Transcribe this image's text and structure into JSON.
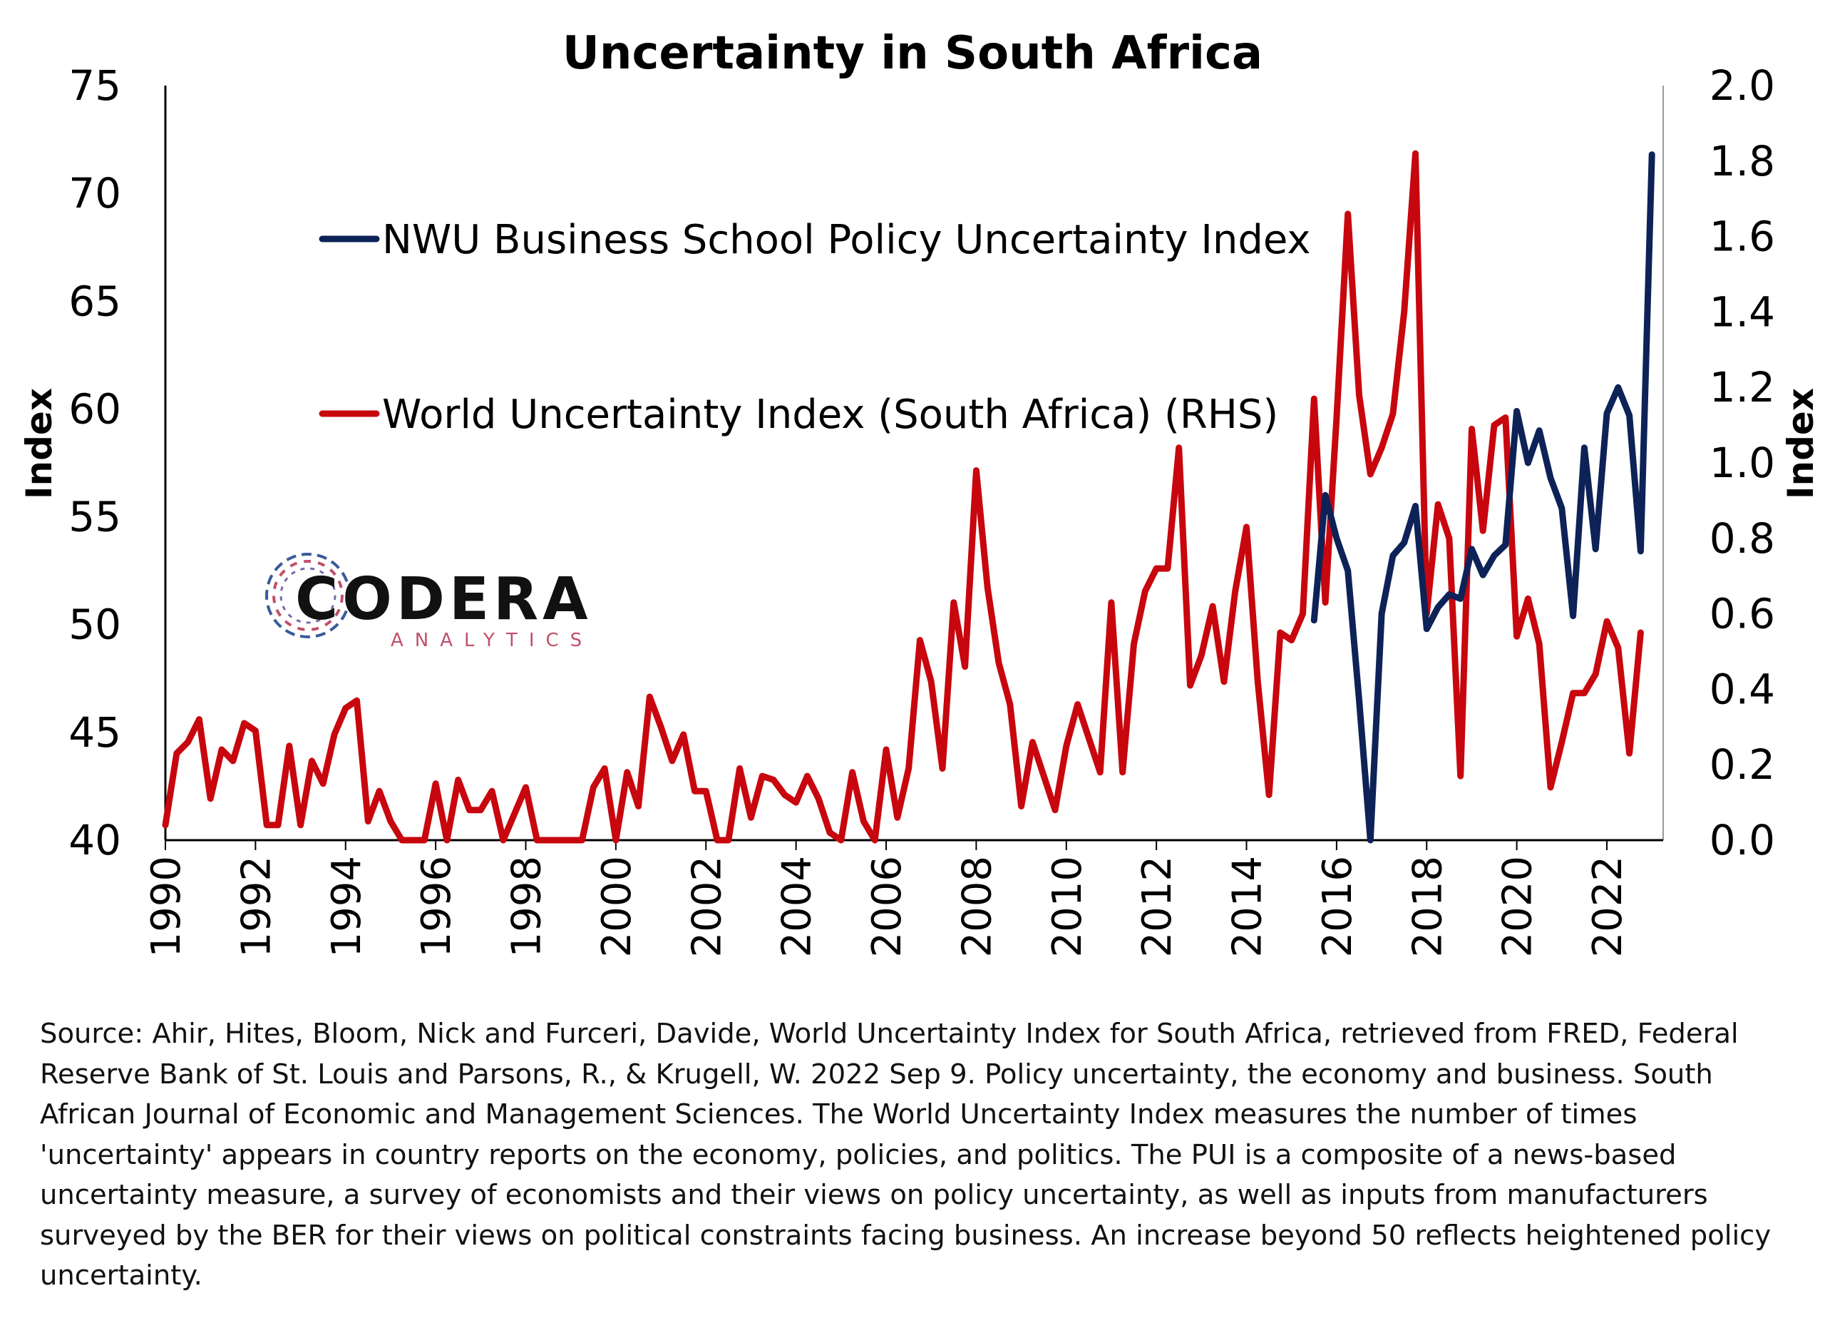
{
  "chart_data": {
    "type": "line",
    "title": "Uncertainty in South Africa",
    "ylabel": "Index",
    "y2label": "Index",
    "ylim": [
      40,
      75
    ],
    "y2lim": [
      0,
      2.0
    ],
    "yticks": [
      "40",
      "45",
      "50",
      "55",
      "60",
      "65",
      "70",
      "75"
    ],
    "y2ticks": [
      "0.0",
      "0.2",
      "0.4",
      "0.6",
      "0.8",
      "1.0",
      "1.2",
      "1.4",
      "1.6",
      "1.8",
      "2.0"
    ],
    "xticks": [
      "1990",
      "1992",
      "1994",
      "1996",
      "1998",
      "2000",
      "2002",
      "2004",
      "2006",
      "2008",
      "2010",
      "2012",
      "2014",
      "2016",
      "2018",
      "2020",
      "2022"
    ],
    "xlim": [
      1990,
      2023.25
    ],
    "legend_position": "upper-left",
    "grid": false,
    "series": [
      {
        "name": "NWU Business School Policy Uncertainty Index",
        "axis": "left",
        "color": "#0d2257",
        "x": [
          2015.5,
          2015.75,
          2016.0,
          2016.25,
          2016.5,
          2016.75,
          2017.0,
          2017.25,
          2017.5,
          2017.75,
          2018.0,
          2018.25,
          2018.5,
          2018.75,
          2019.0,
          2019.25,
          2019.5,
          2019.75,
          2020.0,
          2020.25,
          2020.5,
          2020.75,
          2021.0,
          2021.25,
          2021.5,
          2021.75,
          2022.0,
          2022.25,
          2022.5,
          2022.75,
          2023.0
        ],
        "values": [
          50.2,
          56.0,
          54.0,
          52.5,
          46.5,
          40.0,
          50.5,
          53.2,
          53.8,
          55.5,
          49.8,
          50.8,
          51.4,
          51.2,
          53.5,
          52.3,
          53.2,
          53.7,
          59.9,
          57.5,
          59.0,
          56.8,
          55.4,
          50.4,
          58.2,
          53.5,
          59.8,
          61.0,
          59.7,
          53.4,
          71.8
        ]
      },
      {
        "name": "World Uncertainty Index (South Africa) (RHS)",
        "axis": "right",
        "color": "#c8060e",
        "x": [
          1990.0,
          1990.25,
          1990.5,
          1990.75,
          1991.0,
          1991.25,
          1991.5,
          1991.75,
          1992.0,
          1992.25,
          1992.5,
          1992.75,
          1993.0,
          1993.25,
          1993.5,
          1993.75,
          1994.0,
          1994.25,
          1994.5,
          1994.75,
          1995.0,
          1995.25,
          1995.5,
          1995.75,
          1996.0,
          1996.25,
          1996.5,
          1996.75,
          1997.0,
          1997.25,
          1997.5,
          1997.75,
          1998.0,
          1998.25,
          1998.5,
          1998.75,
          1999.0,
          1999.25,
          1999.5,
          1999.75,
          2000.0,
          2000.25,
          2000.5,
          2000.75,
          2001.0,
          2001.25,
          2001.5,
          2001.75,
          2002.0,
          2002.25,
          2002.5,
          2002.75,
          2003.0,
          2003.25,
          2003.5,
          2003.75,
          2004.0,
          2004.25,
          2004.5,
          2004.75,
          2005.0,
          2005.25,
          2005.5,
          2005.75,
          2006.0,
          2006.25,
          2006.5,
          2006.75,
          2007.0,
          2007.25,
          2007.5,
          2007.75,
          2008.0,
          2008.25,
          2008.5,
          2008.75,
          2009.0,
          2009.25,
          2009.5,
          2009.75,
          2010.0,
          2010.25,
          2010.5,
          2010.75,
          2011.0,
          2011.25,
          2011.5,
          2011.75,
          2012.0,
          2012.25,
          2012.5,
          2012.75,
          2013.0,
          2013.25,
          2013.5,
          2013.75,
          2014.0,
          2014.25,
          2014.5,
          2014.75,
          2015.0,
          2015.25,
          2015.5,
          2015.75,
          2016.0,
          2016.25,
          2016.5,
          2016.75,
          2017.0,
          2017.25,
          2017.5,
          2017.75,
          2018.0,
          2018.25,
          2018.5,
          2018.75,
          2019.0,
          2019.25,
          2019.5,
          2019.75,
          2020.0,
          2020.25,
          2020.5,
          2020.75,
          2021.0,
          2021.25,
          2021.5,
          2021.75,
          2022.0,
          2022.25,
          2022.5,
          2022.75
        ],
        "values": [
          0.04,
          0.23,
          0.26,
          0.32,
          0.11,
          0.24,
          0.21,
          0.31,
          0.29,
          0.04,
          0.04,
          0.25,
          0.04,
          0.21,
          0.15,
          0.28,
          0.35,
          0.37,
          0.05,
          0.13,
          0.05,
          0.0,
          0.0,
          0.0,
          0.15,
          0.0,
          0.16,
          0.08,
          0.08,
          0.13,
          0.0,
          0.07,
          0.14,
          0.0,
          0.0,
          0.0,
          0.0,
          0.0,
          0.14,
          0.19,
          0.0,
          0.18,
          0.09,
          0.38,
          0.3,
          0.21,
          0.28,
          0.13,
          0.13,
          0.0,
          0.0,
          0.19,
          0.06,
          0.17,
          0.16,
          0.12,
          0.1,
          0.17,
          0.11,
          0.02,
          0.0,
          0.18,
          0.05,
          0.0,
          0.24,
          0.06,
          0.19,
          0.53,
          0.42,
          0.19,
          0.63,
          0.46,
          0.98,
          0.67,
          0.47,
          0.36,
          0.09,
          0.26,
          0.17,
          0.08,
          0.25,
          0.36,
          0.27,
          0.18,
          0.63,
          0.18,
          0.52,
          0.66,
          0.72,
          0.72,
          1.04,
          0.41,
          0.49,
          0.62,
          0.42,
          0.66,
          0.83,
          0.42,
          0.12,
          0.55,
          0.53,
          0.6,
          1.17,
          0.63,
          1.12,
          1.66,
          1.18,
          0.97,
          1.04,
          1.13,
          1.4,
          1.82,
          0.6,
          0.89,
          0.8,
          0.17,
          1.09,
          0.82,
          1.1,
          1.12,
          0.54,
          0.64,
          0.52,
          0.14,
          0.26,
          0.39,
          0.39,
          0.44,
          0.58,
          0.51,
          0.23,
          0.55
        ]
      }
    ]
  },
  "logo": {
    "name": "CODERA",
    "subtitle": "ANALYTICS"
  },
  "source_note": "Source: Ahir, Hites, Bloom, Nick and Furceri, Davide, World Uncertainty Index for South Africa, retrieved from FRED, Federal Reserve Bank of St. Louis and Parsons, R., & Krugell, W. 2022 Sep 9. Policy uncertainty, the economy and business. South African Journal of Economic and Management Sciences. The World Uncertainty Index measures the number of times 'uncertainty' appears in country reports on the economy, policies, and politics. The PUI is a composite of a news-based uncertainty measure, a survey of economists and their views on policy uncertainty, as well as inputs from manufacturers surveyed by the BER for their views on political constraints facing business. An increase beyond 50 reflects heightened policy uncertainty."
}
